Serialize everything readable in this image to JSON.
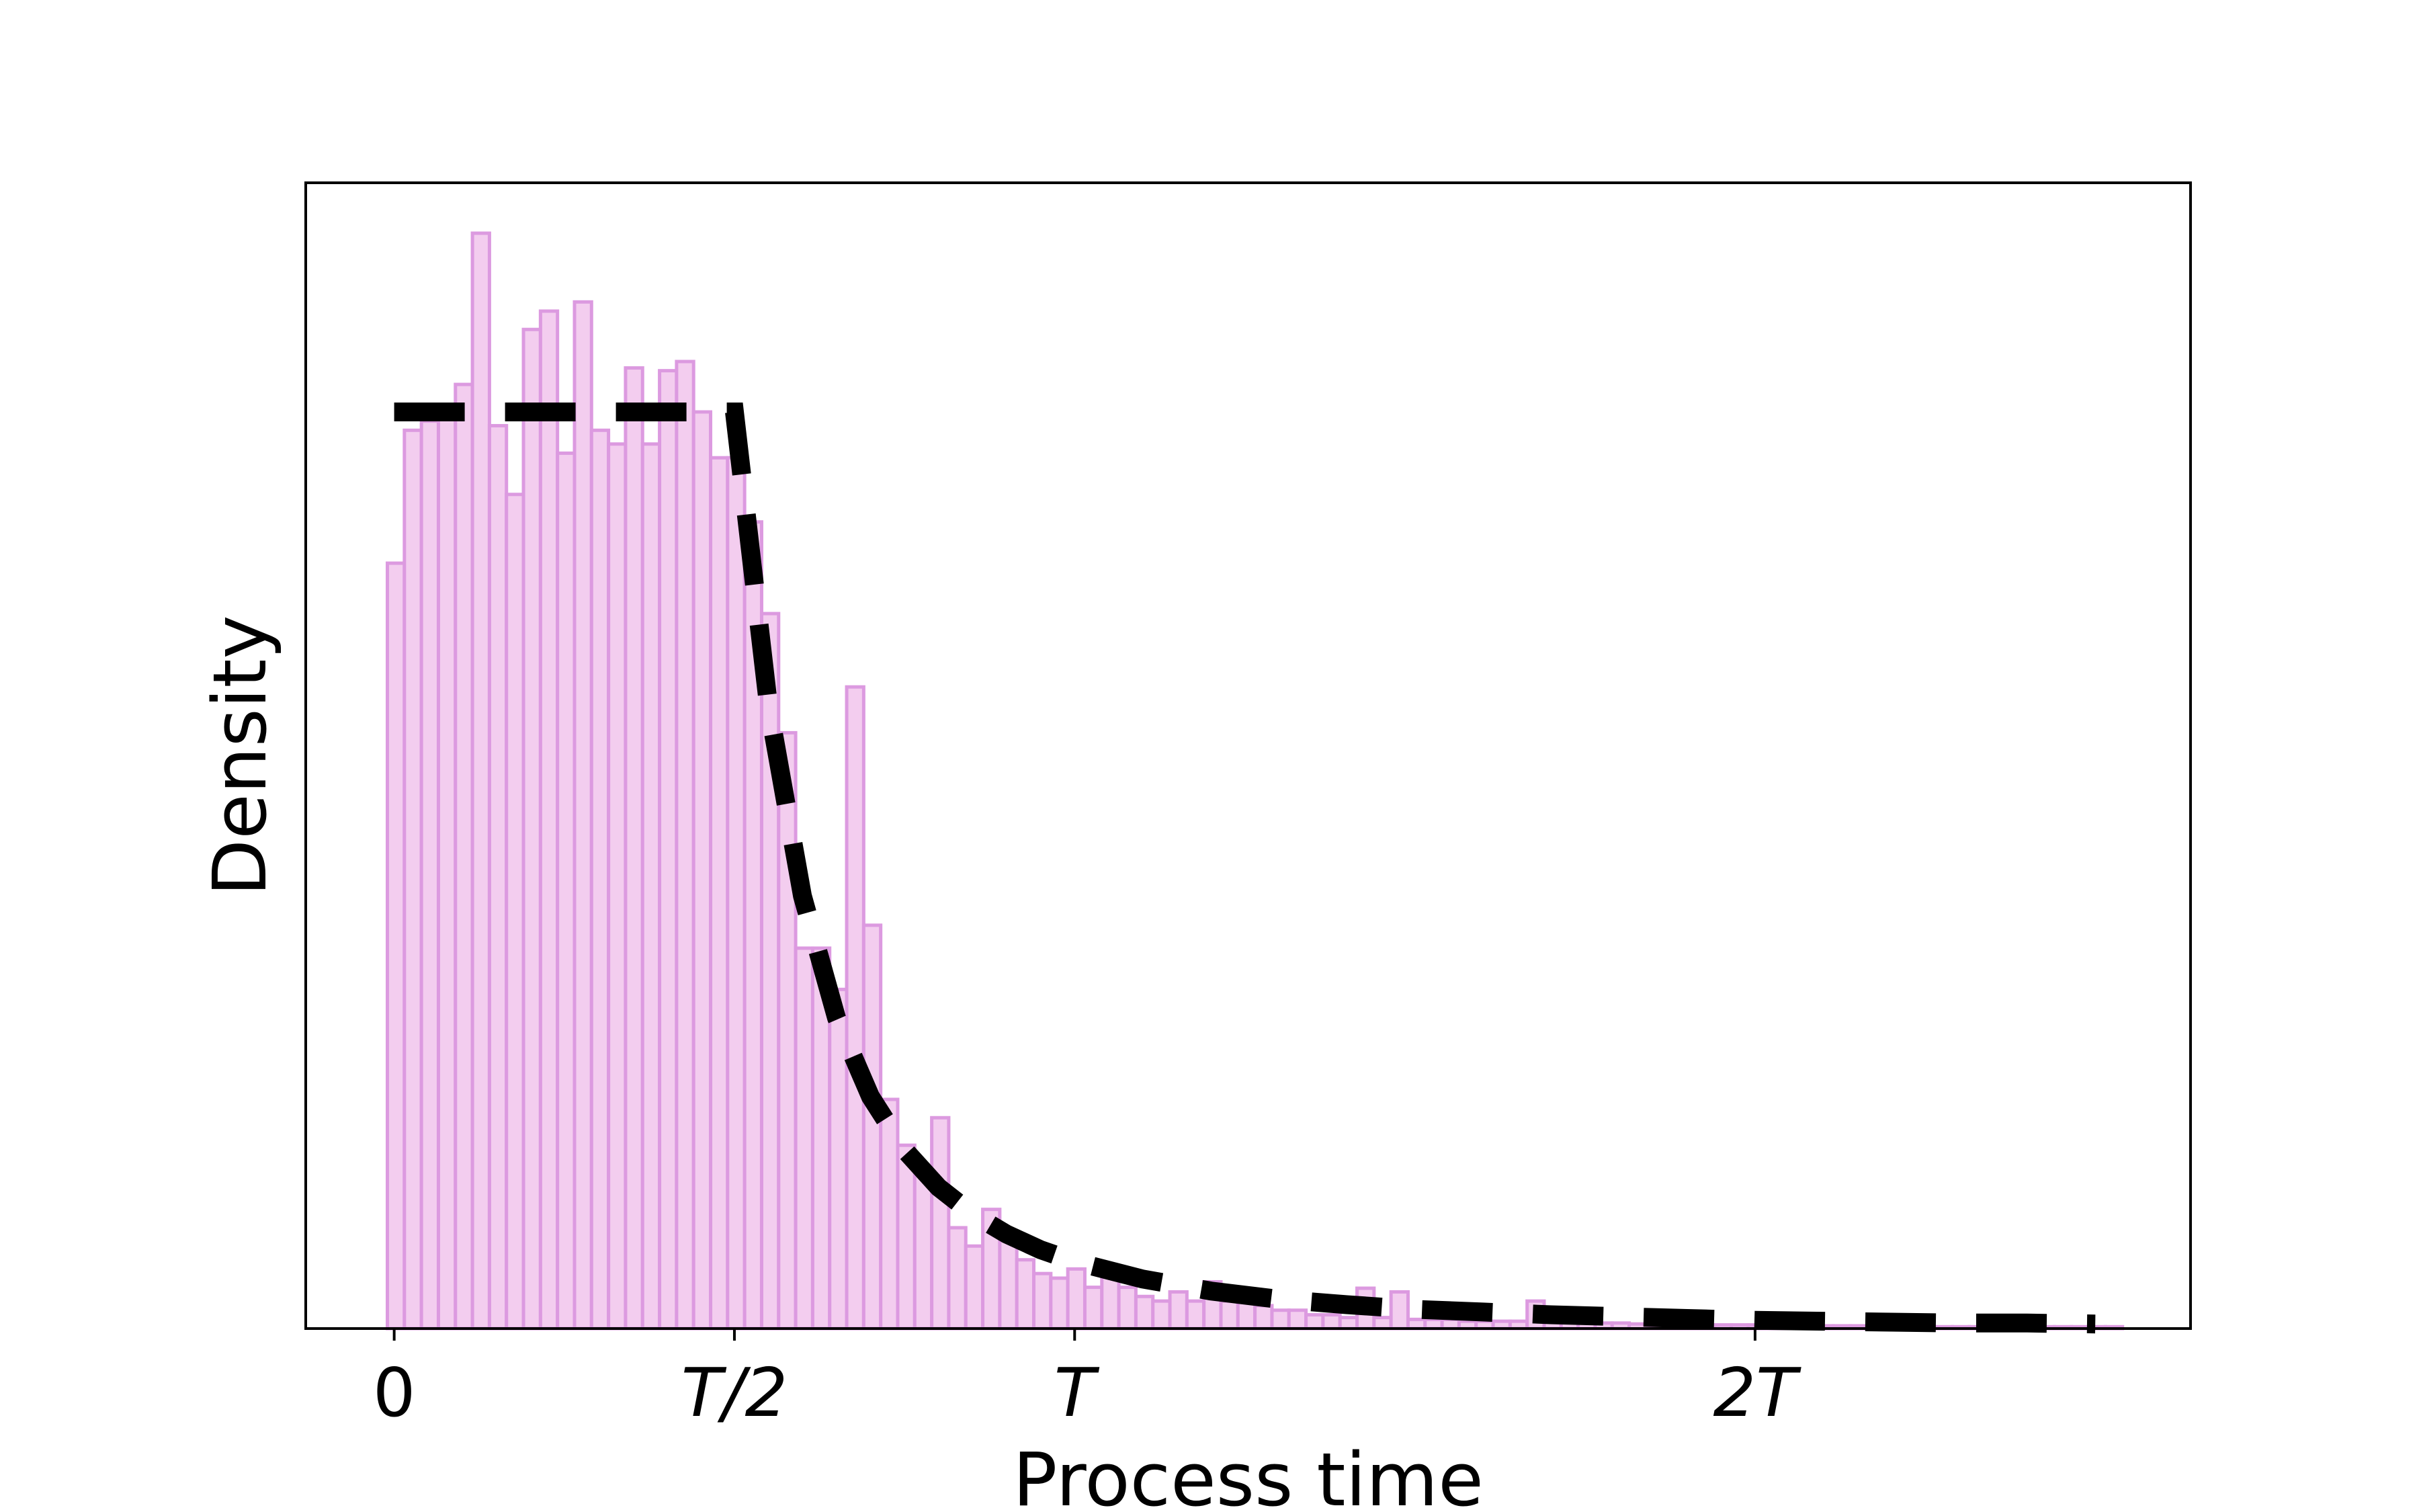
{
  "chart_data": {
    "type": "bar",
    "xlabel": "Process time",
    "ylabel": "Density",
    "xlim": [
      -0.13,
      2.64
    ],
    "ylim": [
      0,
      1.25
    ],
    "grid": false,
    "x_ticks": [
      {
        "value": 0,
        "label": "0",
        "italic": false
      },
      {
        "value": 0.5,
        "label": "T/2",
        "italic": true
      },
      {
        "value": 1,
        "label": "T",
        "italic": true
      },
      {
        "value": 2,
        "label": "2T",
        "italic": true
      }
    ],
    "y_ticks": [],
    "histogram": {
      "bin_start": -0.01,
      "bin_width": 0.025,
      "values": [
        0.835,
        0.98,
        0.975,
        1.0,
        0.92,
        1.13,
        0.985,
        0.91,
        1.055,
        1.1,
        0.955,
        1.07,
        0.98,
        0.965,
        0.96,
        0.965,
        1.05,
        1.015,
        1.0,
        0.95,
        0.95,
        0.88,
        0.78,
        0.61,
        0.415,
        0.415,
        0.37,
        0.37,
        0.28,
        0.25,
        0.2,
        0.17,
        0.115,
        0.11,
        0.09,
        0.085,
        0.08,
        0.075,
        0.06,
        0.055,
        0.065,
        0.045,
        0.04,
        0.045,
        0.035,
        0.03,
        0.04,
        0.03,
        0.03,
        0.03,
        0.035,
        0.025,
        0.02,
        0.02,
        0.015,
        0.015,
        0.012,
        0.012,
        0.012,
        0.01,
        0.01,
        0.01,
        0.01,
        0.008,
        0.008,
        0.008,
        0.008,
        0.007,
        0.007,
        0.007,
        0.006,
        0.006,
        0.006,
        0.005,
        0.005,
        0.005,
        0.005,
        0.004,
        0.004,
        0.004,
        0.004,
        0.004,
        0.003,
        0.003,
        0.003,
        0.003,
        0.003,
        0.002,
        0.002,
        0.002,
        0.002,
        0.002,
        0.002,
        0.002,
        0.002,
        0.002,
        0.002,
        0.002,
        0.002,
        0.002,
        0.002,
        0.002
      ],
      "spike_overrides": [
        [
          2,
          0.99
        ],
        [
          4,
          1.03
        ],
        [
          5,
          1.195
        ],
        [
          8,
          1.09
        ],
        [
          9,
          1.11
        ],
        [
          11,
          1.12
        ],
        [
          14,
          1.048
        ],
        [
          16,
          1.045
        ],
        [
          17,
          1.055
        ],
        [
          23,
          0.65
        ],
        [
          27,
          0.7
        ],
        [
          28,
          0.44
        ],
        [
          32,
          0.23
        ],
        [
          35,
          0.13
        ],
        [
          36,
          0.103
        ],
        [
          42,
          0.058
        ],
        [
          48,
          0.051
        ],
        [
          57,
          0.044
        ],
        [
          59,
          0.04
        ],
        [
          67,
          0.03
        ],
        [
          70,
          0.022
        ]
      ],
      "fill": "#f3cdef",
      "edge": "#dc9ae0"
    },
    "series": [
      {
        "x": [
          0,
          0.05,
          0.1,
          0.15,
          0.2,
          0.25,
          0.3,
          0.35,
          0.4,
          0.45,
          0.5,
          0.55,
          0.6,
          0.65,
          0.7,
          0.75,
          0.8,
          0.85,
          0.9,
          0.95,
          1.0,
          1.1,
          1.2,
          1.3,
          1.4,
          1.5,
          1.6,
          1.7,
          1.8,
          1.9,
          2.0,
          2.1,
          2.2,
          2.3,
          2.4,
          2.5
        ],
        "y": [
          1.0,
          1.0,
          1.0,
          1.0,
          1.0,
          1.0,
          1.0,
          1.0,
          1.0,
          1.0,
          1.0,
          0.68,
          0.472,
          0.339,
          0.253,
          0.195,
          0.154,
          0.125,
          0.103,
          0.086,
          0.073,
          0.054,
          0.041,
          0.032,
          0.026,
          0.021,
          0.018,
          0.015,
          0.013,
          0.011,
          0.009,
          0.008,
          0.007,
          0.006,
          0.006,
          0.005
        ],
        "style": "dashed",
        "color": "#000000"
      }
    ]
  }
}
